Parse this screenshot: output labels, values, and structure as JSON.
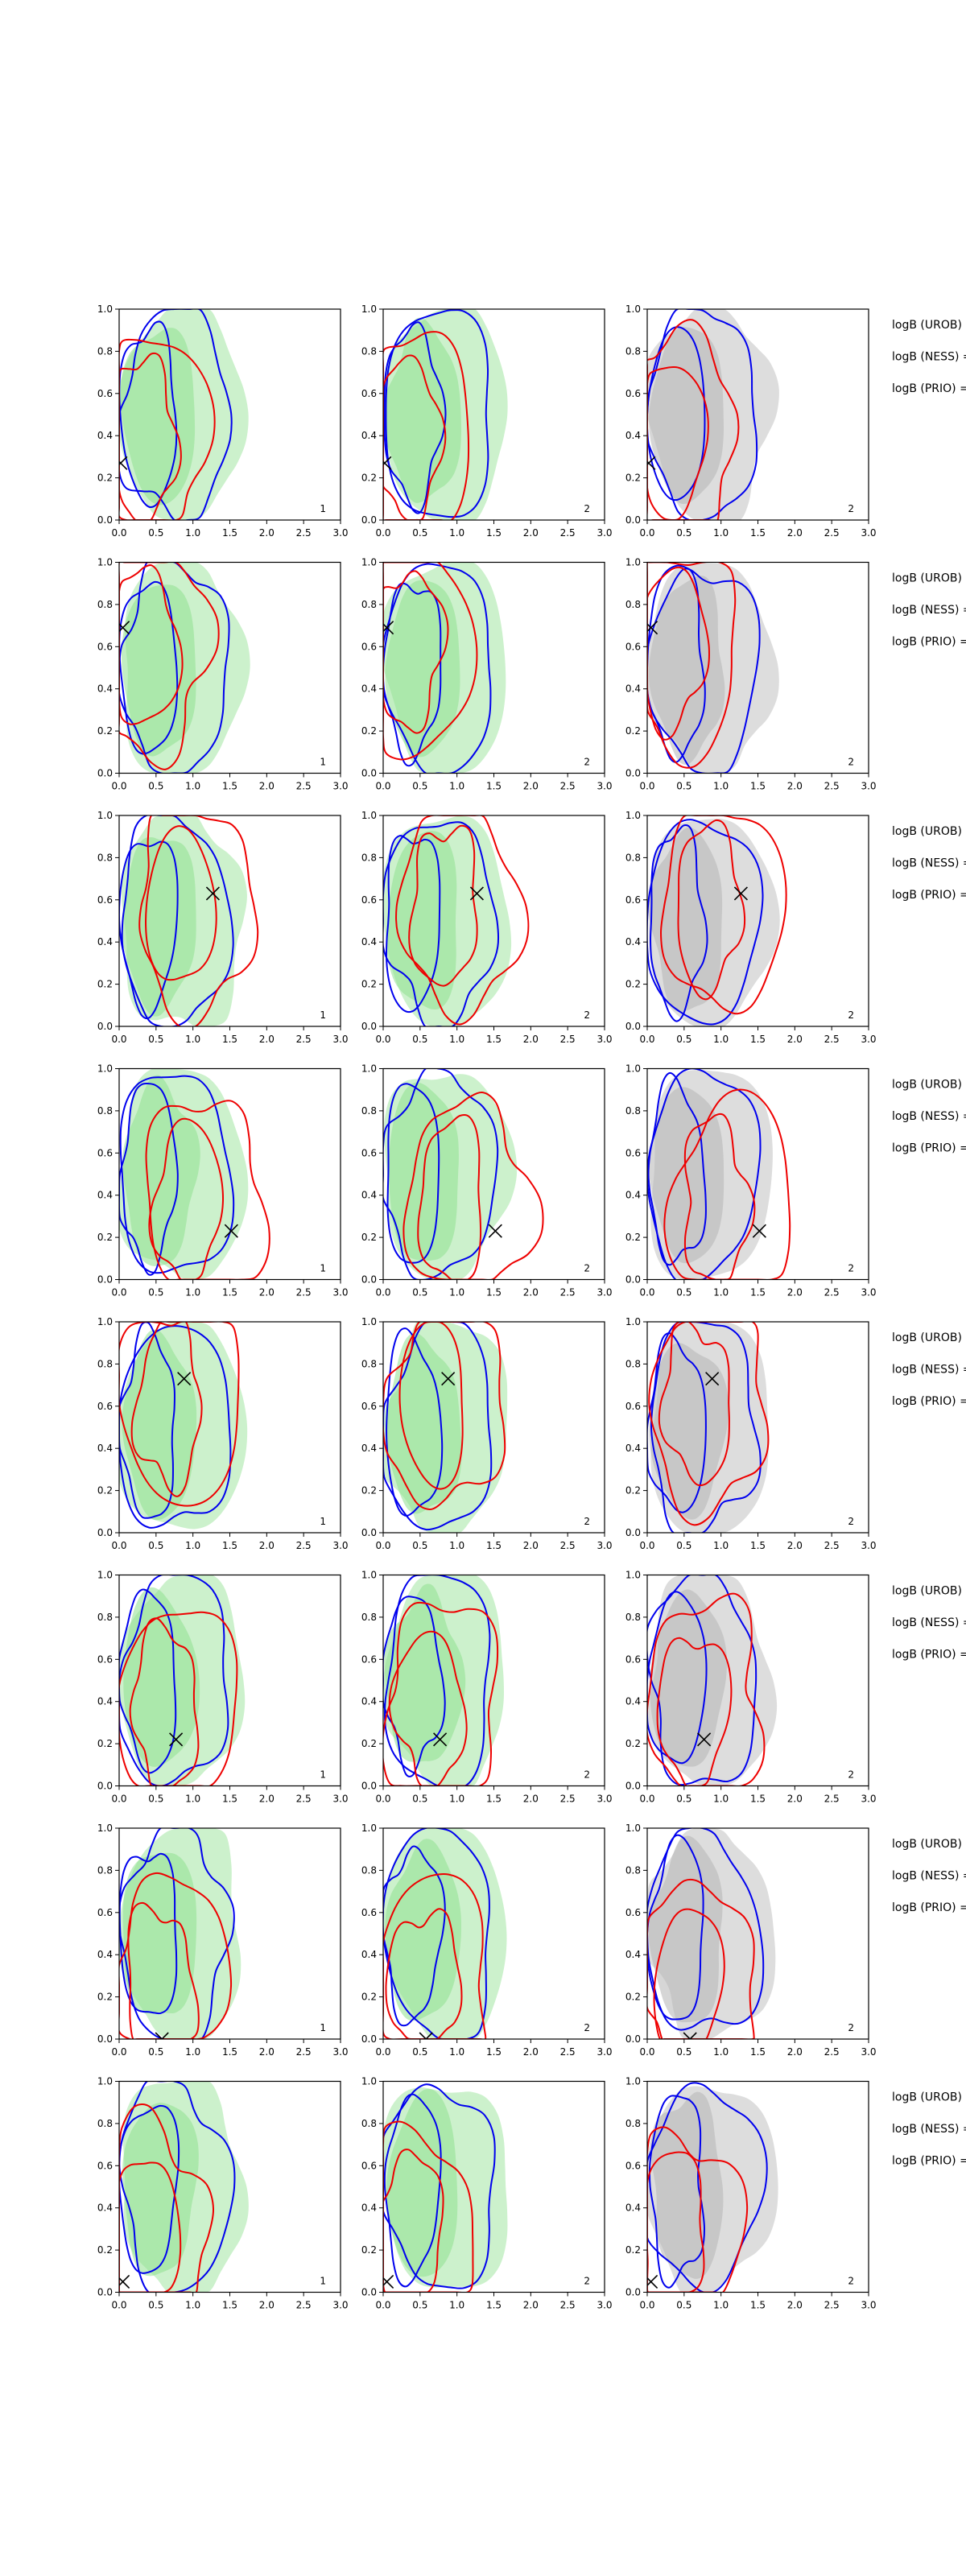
{
  "colors": {
    "green_fill": "#8fe08f",
    "grey_fill": "#b4b4b4",
    "blue_line": "#0000ee",
    "red_line": "#ee0000",
    "marker": "#000000",
    "axes": "#000000"
  },
  "axis": {
    "x_ticks": [
      "0.0",
      "0.5",
      "1.0",
      "1.5",
      "2.0",
      "2.5",
      "3.0"
    ],
    "y_ticks": [
      "0.0",
      "0.2",
      "0.4",
      "0.6",
      "0.8",
      "1.0"
    ]
  },
  "chart_data": {
    "type": "scatter",
    "layout": "8 rows × 3 panels of contour density plots with a marker at the true value",
    "xlim": [
      0,
      3
    ],
    "ylim": [
      0,
      1
    ],
    "grid": false,
    "panel_labels": [
      "1",
      "2",
      "2"
    ],
    "side_labels": [
      "logB (UROB) =",
      "logB (NESS) =",
      "logB (PRIO) ="
    ],
    "markers": [
      {
        "row": 1,
        "x": 0.02,
        "y": 0.27
      },
      {
        "row": 2,
        "x": 0.05,
        "y": 0.69
      },
      {
        "row": 3,
        "x": 1.27,
        "y": 0.63
      },
      {
        "row": 4,
        "x": 1.52,
        "y": 0.23
      },
      {
        "row": 5,
        "x": 0.88,
        "y": 0.73
      },
      {
        "row": 6,
        "x": 0.77,
        "y": 0.22
      },
      {
        "row": 7,
        "x": 0.58,
        "y": 0.0
      },
      {
        "row": 8,
        "x": 0.05,
        "y": 0.05
      }
    ]
  }
}
